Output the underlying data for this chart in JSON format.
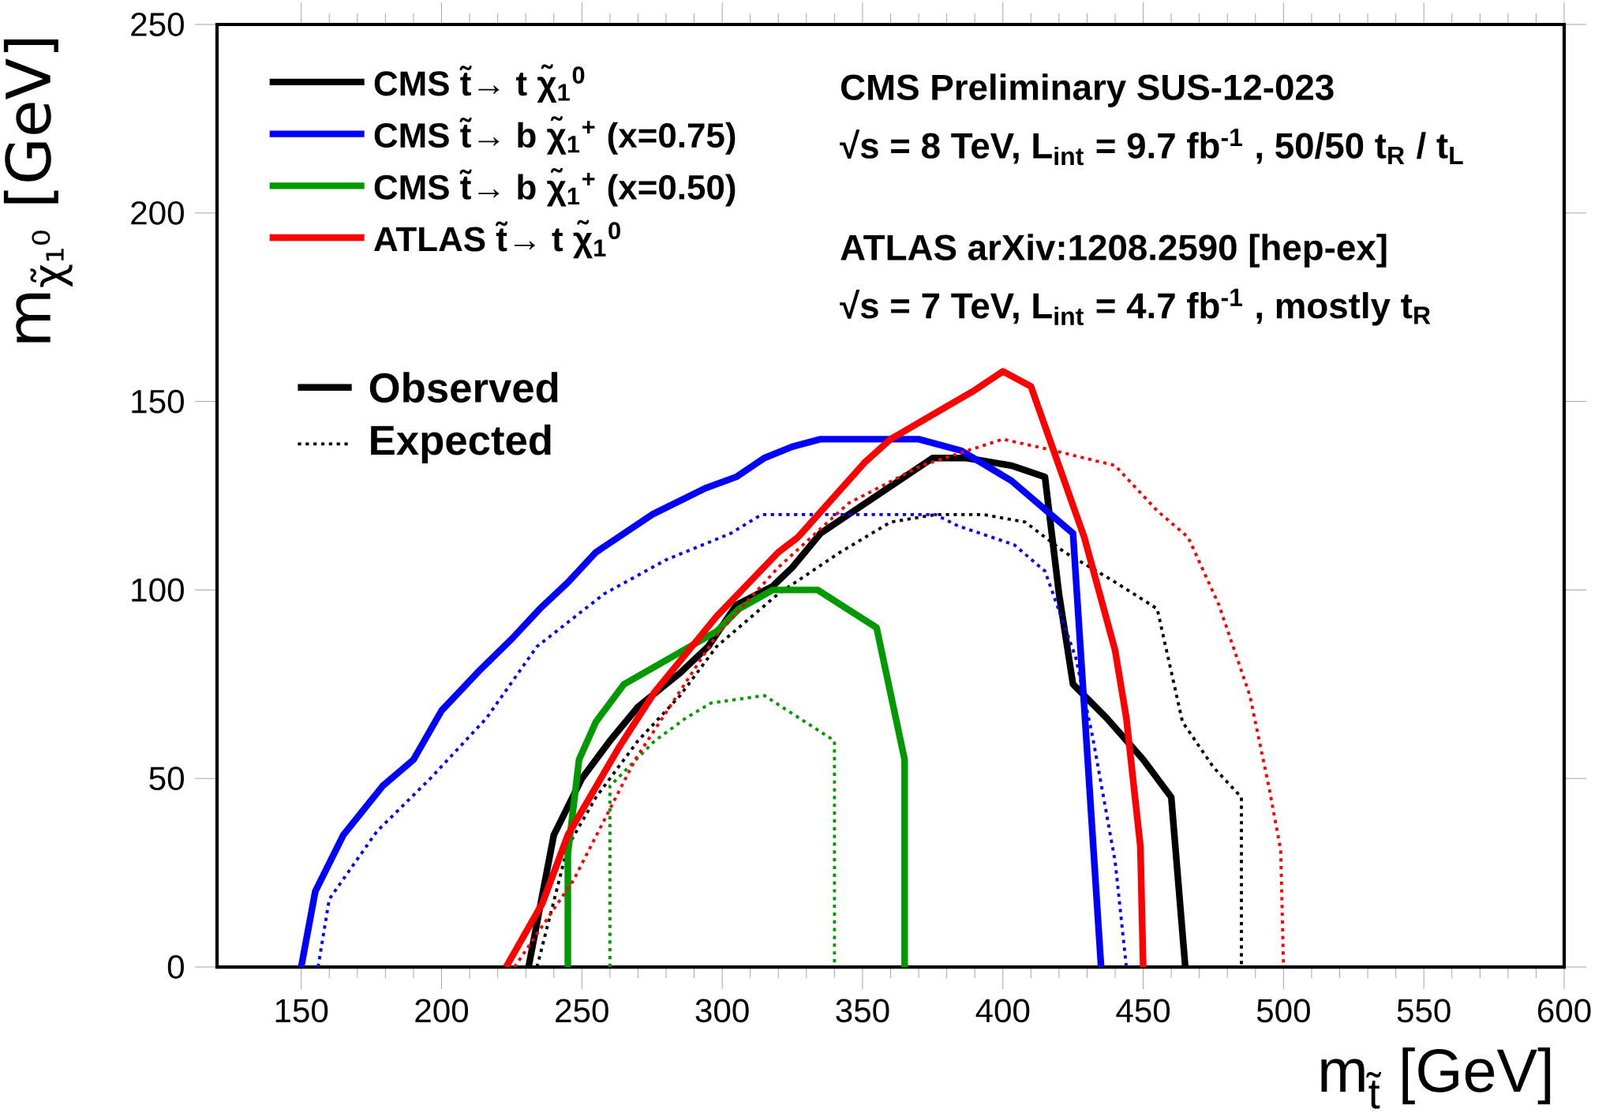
{
  "chart_data": {
    "type": "line",
    "xlabel": "m$_{t̃}$ [GeV]",
    "ylabel": "m$_{χ̃₁⁰}$ [GeV]",
    "xlim": [
      120,
      600
    ],
    "ylim": [
      0,
      250
    ],
    "xticks": [
      150,
      200,
      250,
      300,
      350,
      400,
      450,
      500,
      550,
      600
    ],
    "yticks": [
      0,
      50,
      100,
      150,
      200,
      250
    ],
    "grid": false,
    "legend": "top left",
    "marker": "none",
    "annotations": [
      "CMS Preliminary SUS-12-023",
      "√s = 8 TeV, L$_{int}$ = 9.7 fb$^{-1}$ , 50/50 t$_{R}$ / t$_{L}$",
      "ATLAS arXiv:1208.2590 [hep-ex]",
      "√s = 7 TeV, L$_{int}$ = 4.7 fb$^{-1}$ , mostly t$_{R}$",
      "Observed",
      "Expected"
    ],
    "series": [
      {
        "name": "CMS t̃→ t χ̃$_{1}$$^{0}$",
        "color": "#000000",
        "line_style": "solid",
        "x": [
          231,
          240,
          250,
          260,
          270,
          285,
          295,
          305,
          318,
          325,
          335,
          375,
          387,
          403,
          415,
          420,
          425,
          437,
          450,
          460,
          465
        ],
        "values": [
          0,
          35,
          50,
          60,
          69,
          78,
          85,
          96,
          101,
          106,
          115,
          135,
          135,
          133,
          130,
          99,
          75,
          66,
          55,
          45,
          0
        ]
      },
      {
        "color": "#000000",
        "line_style": "dotted",
        "x": [
          234,
          245,
          255,
          270,
          285,
          298,
          320,
          342,
          360,
          376,
          393,
          408,
          422,
          438,
          455,
          464,
          475,
          485,
          485
        ],
        "values": [
          0,
          32,
          45,
          60,
          72,
          85,
          99,
          110,
          118,
          120,
          120,
          118,
          110,
          103,
          95,
          65,
          53,
          45,
          0
        ]
      },
      {
        "name": "CMS t̃→ b χ̃$_{1}$$^{+}$ (x=0.75)",
        "color": "#0000ff",
        "line_style": "solid",
        "x": [
          150,
          155,
          165,
          179,
          190,
          200,
          214,
          225,
          235,
          245,
          255,
          275,
          294,
          305,
          315,
          325,
          335,
          370,
          385,
          403,
          425,
          435
        ],
        "values": [
          0,
          20,
          35,
          48,
          55,
          68,
          79,
          87,
          95,
          102,
          110,
          120,
          127,
          130,
          135,
          138,
          140,
          140,
          137,
          129,
          115,
          0
        ]
      },
      {
        "color": "#0000ff",
        "line_style": "dotted",
        "x": [
          156,
          160,
          177,
          196,
          216,
          234,
          258,
          280,
          303,
          314,
          376,
          384,
          404,
          415,
          426,
          432,
          440,
          444
        ],
        "values": [
          0,
          18,
          36,
          50,
          66,
          85,
          99,
          108,
          115,
          120,
          120,
          117,
          112,
          105,
          82,
          61,
          28,
          0
        ]
      },
      {
        "name": "CMS t̃→ b χ̃$_{1}$$^{+}$ (x=0.50)",
        "color": "#009900",
        "line_style": "solid",
        "x": [
          245,
          245,
          249,
          255,
          265,
          298,
          306,
          318,
          334,
          355,
          365,
          365
        ],
        "values": [
          0,
          30,
          55,
          65,
          75,
          89,
          95,
          100,
          100,
          90,
          55,
          0
        ]
      },
      {
        "color": "#009900",
        "line_style": "dotted",
        "x": [
          260,
          260,
          276,
          287,
          296,
          315,
          340,
          340
        ],
        "values": [
          0,
          48,
          60,
          66,
          70,
          72,
          60,
          0
        ]
      },
      {
        "name": "ATLAS t̃→ t χ̃$_{1}$$^{0}$",
        "color": "#ff0000",
        "line_style": "solid",
        "x": [
          223,
          236,
          245,
          263,
          276,
          298,
          320,
          327,
          351,
          360,
          390,
          400,
          410,
          429,
          440,
          444,
          449,
          450
        ],
        "values": [
          0,
          17,
          35,
          58,
          73,
          93,
          110,
          114,
          134,
          140,
          153,
          158,
          154,
          114,
          84,
          66,
          32,
          0
        ]
      },
      {
        "color": "#ff0000",
        "line_style": "dotted",
        "x": [
          226,
          247,
          269,
          298,
          320,
          345,
          371,
          400,
          418,
          440,
          455,
          466,
          477,
          488,
          495,
          499,
          500
        ],
        "values": [
          0,
          23,
          55,
          88,
          106,
          123,
          133,
          140,
          137,
          133,
          121,
          114,
          96,
          72,
          47,
          31,
          0
        ]
      }
    ]
  }
}
